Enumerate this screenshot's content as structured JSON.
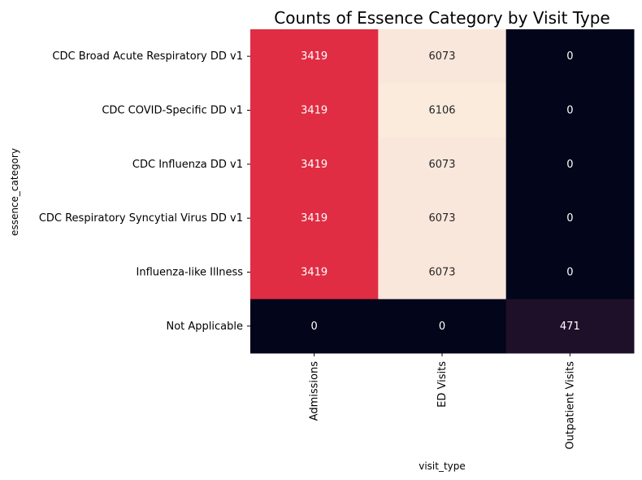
{
  "chart_data": {
    "type": "heatmap",
    "title": "Counts of Essence Category by Visit Type",
    "xlabel": "visit_type",
    "ylabel": "essence_category",
    "columns": [
      "Admissions",
      "ED Visits",
      "Outpatient Visits"
    ],
    "rows": [
      "CDC Broad Acute Respiratory DD v1",
      "CDC COVID-Specific DD v1",
      "CDC Influenza DD v1",
      "CDC Respiratory Syncytial Virus DD v1",
      "Influenza-like Illness",
      "Not Applicable"
    ],
    "values": [
      [
        3419,
        6073,
        0
      ],
      [
        3419,
        6106,
        0
      ],
      [
        3419,
        6073,
        0
      ],
      [
        3419,
        6073,
        0
      ],
      [
        3419,
        6073,
        0
      ],
      [
        0,
        0,
        471
      ]
    ],
    "colorbar": false,
    "annotations": true,
    "colormap": "rocket",
    "cell_colors": {
      "0": "#03051a",
      "471": "#1f1029",
      "3419": "#e02d43",
      "6073": "#fae7dc",
      "6106": "#faebdd"
    }
  }
}
